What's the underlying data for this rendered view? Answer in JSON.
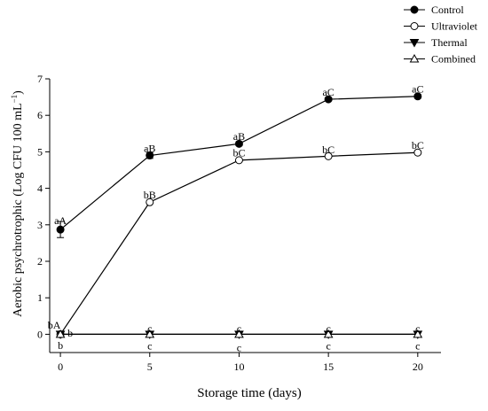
{
  "chart_data": {
    "type": "line",
    "title": "",
    "xlabel": "Storage time (days)",
    "ylabel_main": "Aerobic psychrotrophic (Log CFU 100 mL",
    "ylabel_sup": "−1",
    "ylabel_close": ")",
    "x": [
      0,
      5,
      10,
      15,
      20
    ],
    "x_ticks": [
      "0",
      "5",
      "10",
      "15",
      "20"
    ],
    "y_ticks": [
      "0",
      "1",
      "2",
      "3",
      "4",
      "5",
      "6",
      "7"
    ],
    "xlim": [
      -0.6,
      21.3
    ],
    "ylim": [
      -0.5,
      7
    ],
    "legend_position": "top-right",
    "series": [
      {
        "name": "Control",
        "marker": "filled-circle",
        "values": [
          2.87,
          4.9,
          5.22,
          6.44,
          6.52
        ],
        "errors": [
          0.22,
          0.08,
          0.05,
          0.04,
          0.05
        ]
      },
      {
        "name": "Ultraviolet",
        "marker": "open-circle",
        "values": [
          0.0,
          3.62,
          4.77,
          4.88,
          4.98
        ],
        "errors": [
          0,
          0,
          0,
          0,
          0
        ]
      },
      {
        "name": "Thermal",
        "marker": "filled-triangle-down",
        "values": [
          0,
          0,
          0,
          0,
          0
        ],
        "errors": [
          0,
          0,
          0,
          0,
          0
        ]
      },
      {
        "name": "Combined",
        "marker": "open-triangle-up",
        "values": [
          0,
          0,
          0,
          0,
          0
        ],
        "errors": [
          0,
          0,
          0,
          0,
          0
        ]
      }
    ],
    "annotations": [
      {
        "text": "aA",
        "x": 0,
        "y": 3.12
      },
      {
        "text": "aB",
        "x": 5,
        "y": 5.1
      },
      {
        "text": "aB",
        "x": 10,
        "y": 5.42
      },
      {
        "text": "aC",
        "x": 15,
        "y": 6.64
      },
      {
        "text": "aC",
        "x": 20,
        "y": 6.72
      },
      {
        "text": "bA",
        "x": -0.35,
        "y": 0.25
      },
      {
        "text": "bB",
        "x": 5,
        "y": 3.82
      },
      {
        "text": "bC",
        "x": 10,
        "y": 4.97
      },
      {
        "text": "bC",
        "x": 15,
        "y": 5.06
      },
      {
        "text": "bC",
        "x": 20,
        "y": 5.18
      },
      {
        "text": "b",
        "x": 0.55,
        "y": 0.04
      },
      {
        "text": "b",
        "x": 0,
        "y": -0.3
      },
      {
        "text": "c",
        "x": 5,
        "y": 0.15
      },
      {
        "text": "c",
        "x": 10,
        "y": 0.15
      },
      {
        "text": "c",
        "x": 15,
        "y": 0.15
      },
      {
        "text": "c",
        "x": 20,
        "y": 0.15
      },
      {
        "text": "c",
        "x": 5,
        "y": -0.32
      },
      {
        "text": "c",
        "x": 10,
        "y": -0.37
      },
      {
        "text": "c",
        "x": 15,
        "y": -0.32
      },
      {
        "text": "c",
        "x": 20,
        "y": -0.32
      }
    ]
  }
}
